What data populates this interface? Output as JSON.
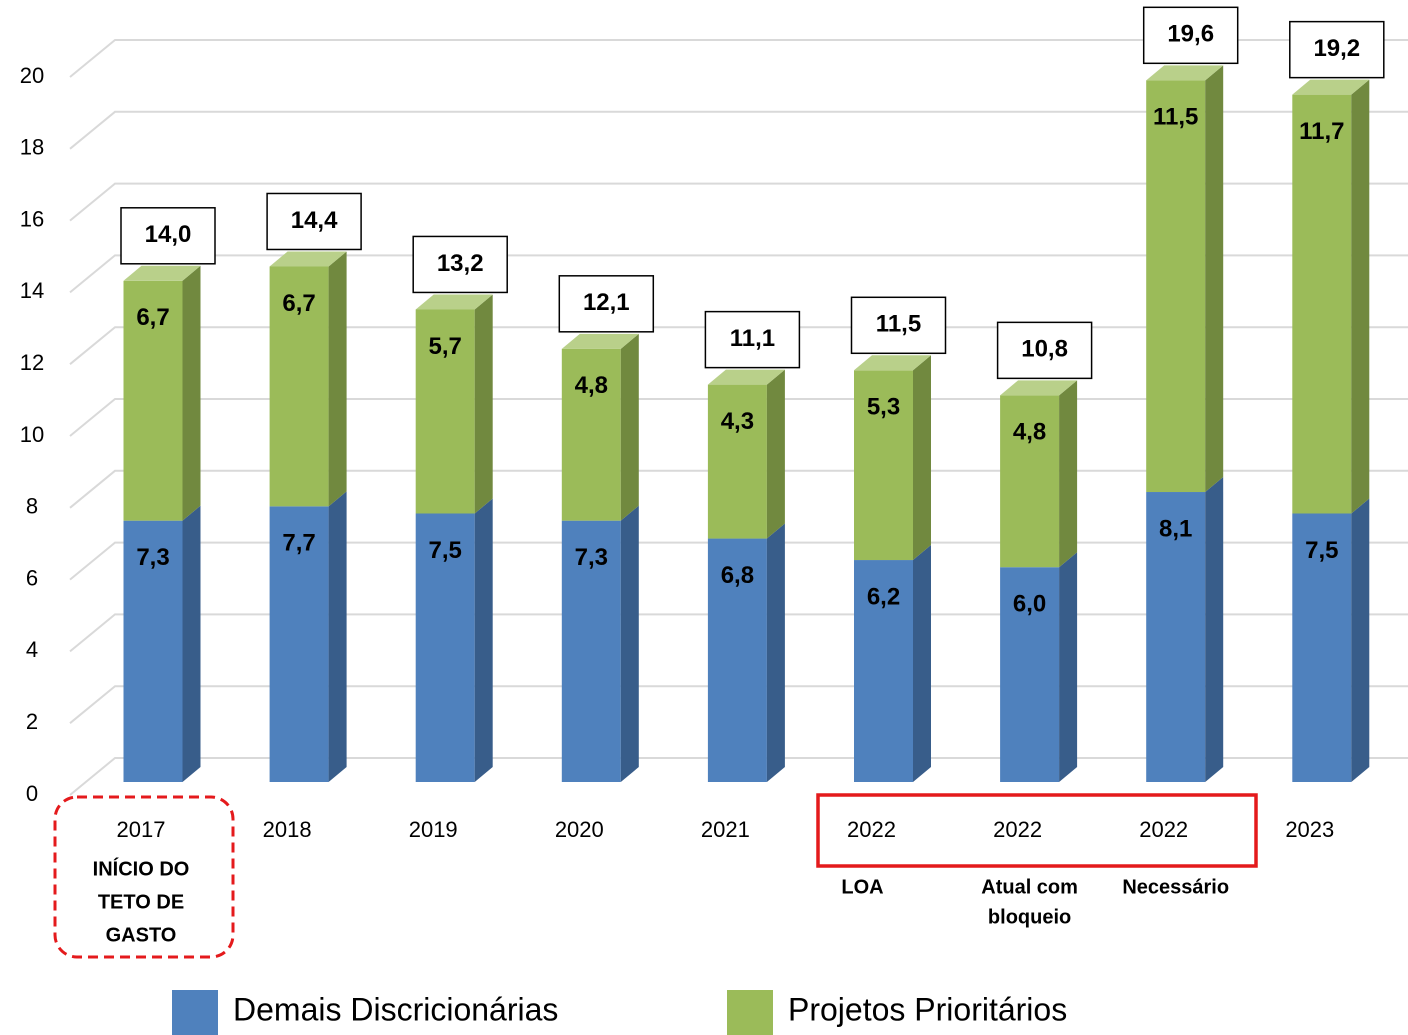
{
  "chart_data": {
    "type": "bar",
    "stacked": true,
    "categories": [
      "2017",
      "2018",
      "2019",
      "2020",
      "2021",
      "2022",
      "2022",
      "2022",
      "2023"
    ],
    "sublabels": [
      [
        "INÍCIO DO",
        "TETO DE",
        "GASTO"
      ],
      null,
      null,
      null,
      null,
      [
        "LOA"
      ],
      [
        "Atual com",
        "bloqueio"
      ],
      [
        "Necessário"
      ],
      null
    ],
    "series": [
      {
        "name": "Demais Discricionárias",
        "color": "#4f81bd",
        "side_color": "#385d8a",
        "top_color": "#7aa0d0",
        "values": [
          7.3,
          7.7,
          7.5,
          7.3,
          6.8,
          6.2,
          6.0,
          8.1,
          7.5
        ],
        "value_labels": [
          "7,3",
          "7,7",
          "7,5",
          "7,3",
          "6,8",
          "6,2",
          "6,0",
          "8,1",
          "7,5"
        ]
      },
      {
        "name": "Projetos Prioritários",
        "color": "#9bbb59",
        "side_color": "#71893f",
        "top_color": "#b9d08a",
        "values": [
          6.7,
          6.7,
          5.7,
          4.8,
          4.3,
          5.3,
          4.8,
          11.5,
          11.7
        ],
        "value_labels": [
          "6,7",
          "6,7",
          "5,7",
          "4,8",
          "4,3",
          "5,3",
          "4,8",
          "11,5",
          "11,7"
        ]
      }
    ],
    "totals": [
      14.0,
      14.4,
      13.2,
      12.1,
      11.1,
      11.5,
      10.8,
      19.6,
      19.2
    ],
    "total_labels": [
      "14,0",
      "14,4",
      "13,2",
      "12,1",
      "11,1",
      "11,5",
      "10,8",
      "19,6",
      "19,2"
    ],
    "ylim": [
      0,
      20
    ],
    "yticks": [
      0,
      2,
      4,
      6,
      8,
      10,
      12,
      14,
      16,
      18,
      20
    ],
    "grid": true
  }
}
